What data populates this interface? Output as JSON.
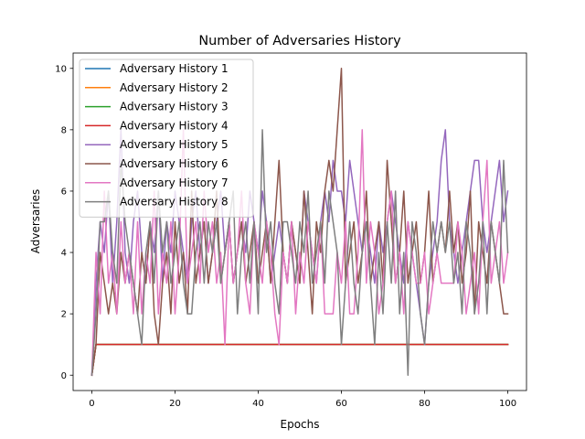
{
  "chart_data": {
    "type": "line",
    "title": "Number of Adversaries History",
    "xlabel": "Epochs",
    "ylabel": "Adversaries",
    "xlim": [
      -4.5,
      104.5
    ],
    "ylim": [
      -0.5,
      10.5
    ],
    "xticks": [
      0,
      20,
      40,
      60,
      80,
      100
    ],
    "yticks": [
      0,
      2,
      4,
      6,
      8,
      10
    ],
    "grid": false,
    "legend": "top-left",
    "series": [
      {
        "name": "Adversary History 1",
        "color": "#1f77b4",
        "x": [
          0,
          1,
          100
        ],
        "y": [
          0,
          1,
          1
        ]
      },
      {
        "name": "Adversary History 2",
        "color": "#ff7f0e",
        "x": [
          0,
          1,
          100
        ],
        "y": [
          0,
          1,
          1
        ]
      },
      {
        "name": "Adversary History 3",
        "color": "#2ca02c",
        "x": [
          0,
          1,
          100
        ],
        "y": [
          0,
          1,
          1
        ]
      },
      {
        "name": "Adversary History 4",
        "color": "#d62728",
        "x": [
          0,
          1,
          100
        ],
        "y": [
          0,
          1,
          1
        ]
      },
      {
        "name": "Adversary History 5",
        "color": "#9467bd",
        "x": [
          0,
          1,
          2,
          3,
          4,
          5,
          6,
          7,
          8,
          9,
          10,
          11,
          12,
          13,
          14,
          15,
          16,
          17,
          18,
          19,
          20,
          21,
          22,
          23,
          24,
          25,
          26,
          27,
          28,
          29,
          30,
          31,
          32,
          33,
          34,
          35,
          36,
          37,
          38,
          39,
          40,
          41,
          42,
          43,
          44,
          45,
          46,
          47,
          48,
          49,
          50,
          51,
          52,
          53,
          54,
          55,
          56,
          57,
          58,
          59,
          60,
          61,
          62,
          63,
          64,
          65,
          66,
          67,
          68,
          69,
          70,
          71,
          72,
          73,
          74,
          75,
          76,
          77,
          78,
          79,
          80,
          81,
          82,
          83,
          84,
          85,
          86,
          87,
          88,
          89,
          90,
          91,
          92,
          93,
          94,
          95,
          96,
          97,
          98,
          99,
          100
        ],
        "y": [
          0,
          3,
          5,
          4,
          6,
          3,
          5,
          8,
          4,
          3,
          5,
          6,
          4,
          3,
          5,
          4,
          6,
          3,
          5,
          4,
          6,
          5,
          4,
          3,
          5,
          6,
          4,
          5,
          3,
          4,
          5,
          6,
          4,
          5,
          3,
          4,
          5,
          4,
          6,
          5,
          4,
          6,
          5,
          3,
          4,
          5,
          4,
          3,
          5,
          4,
          3,
          6,
          5,
          4,
          3,
          5,
          6,
          5,
          7,
          6,
          6,
          5,
          7,
          6,
          5,
          4,
          5,
          4,
          3,
          5,
          4,
          5,
          6,
          5,
          4,
          3,
          5,
          4,
          3,
          2,
          1,
          3,
          4,
          5,
          7,
          8,
          5,
          4,
          3,
          4,
          5,
          6,
          7,
          7,
          5,
          4,
          5,
          6,
          7,
          5,
          6
        ]
      },
      {
        "name": "Adversary History 6",
        "color": "#8c564b",
        "x": [
          0,
          1,
          2,
          3,
          4,
          5,
          6,
          7,
          8,
          9,
          10,
          11,
          12,
          13,
          14,
          15,
          16,
          17,
          18,
          19,
          20,
          21,
          22,
          23,
          24,
          25,
          26,
          27,
          28,
          29,
          30,
          31,
          32,
          33,
          34,
          35,
          36,
          37,
          38,
          39,
          40,
          41,
          42,
          43,
          44,
          45,
          46,
          47,
          48,
          49,
          50,
          51,
          52,
          53,
          54,
          55,
          56,
          57,
          58,
          59,
          60,
          61,
          62,
          63,
          64,
          65,
          66,
          67,
          68,
          69,
          70,
          71,
          72,
          73,
          74,
          75,
          76,
          77,
          78,
          79,
          80,
          81,
          82,
          83,
          84,
          85,
          86,
          87,
          88,
          89,
          90,
          91,
          92,
          93,
          94,
          95,
          96,
          97,
          98,
          99,
          100
        ],
        "y": [
          0,
          1,
          4,
          3,
          2,
          3,
          2,
          4,
          3,
          4,
          3,
          2,
          4,
          3,
          5,
          2,
          1,
          3,
          4,
          2,
          5,
          3,
          4,
          2,
          6,
          3,
          4,
          5,
          3,
          4,
          6,
          3,
          4,
          5,
          3,
          4,
          5,
          3,
          4,
          5,
          3,
          4,
          5,
          3,
          5,
          7,
          4,
          3,
          5,
          4,
          3,
          6,
          4,
          2,
          5,
          4,
          6,
          7,
          6,
          8,
          10,
          3,
          4,
          5,
          3,
          4,
          6,
          3,
          4,
          5,
          3,
          7,
          5,
          3,
          4,
          6,
          3,
          4,
          5,
          3,
          4,
          6,
          3,
          4,
          5,
          4,
          6,
          4,
          5,
          3,
          4,
          6,
          2,
          5,
          4,
          3,
          5,
          4,
          3,
          2,
          2
        ]
      },
      {
        "name": "Adversary History 7",
        "color": "#e377c2",
        "x": [
          0,
          1,
          2,
          3,
          4,
          5,
          6,
          7,
          8,
          9,
          10,
          11,
          12,
          13,
          14,
          15,
          16,
          17,
          18,
          19,
          20,
          21,
          22,
          23,
          24,
          25,
          26,
          27,
          28,
          29,
          30,
          31,
          32,
          33,
          34,
          35,
          36,
          37,
          38,
          39,
          40,
          41,
          42,
          43,
          44,
          45,
          46,
          47,
          48,
          49,
          50,
          51,
          52,
          53,
          54,
          55,
          56,
          57,
          58,
          59,
          60,
          61,
          62,
          63,
          64,
          65,
          66,
          67,
          68,
          69,
          70,
          71,
          72,
          73,
          74,
          75,
          76,
          77,
          78,
          79,
          80,
          81,
          82,
          83,
          84,
          85,
          86,
          87,
          88,
          89,
          90,
          91,
          92,
          93,
          94,
          95,
          96,
          97,
          98,
          99,
          100
        ],
        "y": [
          0,
          4,
          2,
          6,
          3,
          4,
          2,
          5,
          3,
          4,
          2,
          5,
          2,
          4,
          3,
          6,
          2,
          4,
          3,
          5,
          2,
          4,
          8,
          3,
          4,
          5,
          3,
          6,
          4,
          5,
          3,
          4,
          1,
          5,
          3,
          4,
          6,
          3,
          2,
          5,
          4,
          3,
          5,
          4,
          2,
          1,
          4,
          3,
          5,
          2,
          4,
          3,
          5,
          4,
          3,
          5,
          2,
          2,
          2,
          4,
          3,
          5,
          2,
          2,
          4,
          8,
          3,
          5,
          4,
          2,
          3,
          5,
          6,
          3,
          4,
          2,
          5,
          4,
          3,
          3,
          4,
          2,
          3,
          4,
          3,
          3,
          3,
          3,
          5,
          4,
          2,
          3,
          4,
          2,
          5,
          7,
          3,
          4,
          5,
          3,
          4
        ]
      },
      {
        "name": "Adversary History 8",
        "color": "#7f7f7f",
        "x": [
          0,
          1,
          2,
          3,
          4,
          5,
          6,
          7,
          8,
          9,
          10,
          11,
          12,
          13,
          14,
          15,
          16,
          17,
          18,
          19,
          20,
          21,
          22,
          23,
          24,
          25,
          26,
          27,
          28,
          29,
          30,
          31,
          32,
          33,
          34,
          35,
          36,
          37,
          38,
          39,
          40,
          41,
          42,
          43,
          44,
          45,
          46,
          47,
          48,
          49,
          50,
          51,
          52,
          53,
          54,
          55,
          56,
          57,
          58,
          59,
          60,
          61,
          62,
          63,
          64,
          65,
          66,
          67,
          68,
          69,
          70,
          71,
          72,
          73,
          74,
          75,
          76,
          77,
          78,
          79,
          80,
          81,
          82,
          83,
          84,
          85,
          86,
          87,
          88,
          89,
          90,
          91,
          92,
          93,
          94,
          95,
          96,
          97,
          98,
          99,
          100
        ],
        "y": [
          0,
          2,
          5,
          5,
          6,
          4,
          3,
          7,
          5,
          4,
          3,
          2,
          1,
          4,
          5,
          3,
          6,
          4,
          5,
          3,
          4,
          5,
          3,
          2,
          2,
          4,
          5,
          3,
          5,
          4,
          5,
          3,
          4,
          5,
          6,
          2,
          4,
          5,
          3,
          5,
          2,
          8,
          4,
          5,
          3,
          2,
          5,
          5,
          4,
          3,
          5,
          4,
          6,
          3,
          4,
          5,
          3,
          6,
          5,
          4,
          1,
          3,
          5,
          3,
          2,
          4,
          5,
          3,
          1,
          4,
          2,
          5,
          3,
          6,
          2,
          4,
          0,
          5,
          4,
          2,
          1,
          3,
          5,
          4,
          5,
          4,
          5,
          3,
          4,
          2,
          5,
          4,
          2,
          3,
          5,
          2,
          5,
          4,
          3,
          7,
          4
        ]
      }
    ]
  }
}
